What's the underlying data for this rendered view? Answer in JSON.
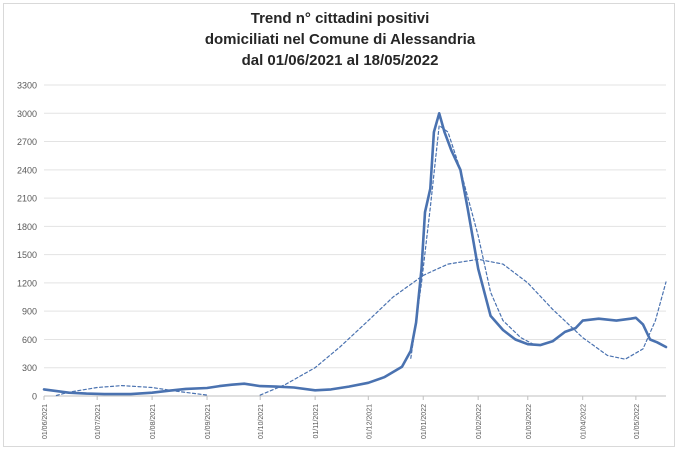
{
  "chart_data": {
    "type": "line",
    "title_lines": [
      "Trend n° cittadini positivi",
      "domiciliati nel Comune di Alessandria",
      "dal 01/06/2021 al 18/05/2022"
    ],
    "xlabel": "",
    "ylabel": "",
    "ylim": [
      0,
      3300
    ],
    "y_ticks": [
      "0",
      "300",
      "600",
      "900",
      "1200",
      "1500",
      "1800",
      "2100",
      "2400",
      "2700",
      "3000",
      "3300"
    ],
    "x_ticks": [
      "01/06/2021",
      "01/07/2021",
      "01/08/2021",
      "01/09/2021",
      "01/10/2021",
      "01/11/2021",
      "01/12/2021",
      "01/01/2022",
      "01/02/2022",
      "01/03/2022",
      "01/04/2022",
      "01/05/2022"
    ],
    "x_range": [
      "01/06/2021",
      "18/05/2022"
    ],
    "grid": true,
    "legend": "none",
    "series": [
      {
        "style": "solid",
        "color": "#4a72b0",
        "points": [
          [
            "01/06/2021",
            70
          ],
          [
            "07/06/2021",
            55
          ],
          [
            "15/06/2021",
            35
          ],
          [
            "25/06/2021",
            25
          ],
          [
            "05/07/2021",
            20
          ],
          [
            "20/07/2021",
            20
          ],
          [
            "01/08/2021",
            35
          ],
          [
            "10/08/2021",
            55
          ],
          [
            "20/08/2021",
            75
          ],
          [
            "01/09/2021",
            85
          ],
          [
            "08/09/2021",
            105
          ],
          [
            "15/09/2021",
            120
          ],
          [
            "22/09/2021",
            130
          ],
          [
            "01/10/2021",
            105
          ],
          [
            "10/10/2021",
            100
          ],
          [
            "20/10/2021",
            90
          ],
          [
            "01/11/2021",
            60
          ],
          [
            "10/11/2021",
            70
          ],
          [
            "20/11/2021",
            100
          ],
          [
            "01/12/2021",
            140
          ],
          [
            "10/12/2021",
            200
          ],
          [
            "20/12/2021",
            310
          ],
          [
            "25/12/2021",
            480
          ],
          [
            "28/12/2021",
            780
          ],
          [
            "31/12/2021",
            1350
          ],
          [
            "02/01/2022",
            1950
          ],
          [
            "05/01/2022",
            2200
          ],
          [
            "07/01/2022",
            2800
          ],
          [
            "10/01/2022",
            3000
          ],
          [
            "13/01/2022",
            2800
          ],
          [
            "17/01/2022",
            2600
          ],
          [
            "22/01/2022",
            2400
          ],
          [
            "26/01/2022",
            2000
          ],
          [
            "01/02/2022",
            1350
          ],
          [
            "08/02/2022",
            850
          ],
          [
            "15/02/2022",
            700
          ],
          [
            "22/02/2022",
            600
          ],
          [
            "01/03/2022",
            550
          ],
          [
            "08/03/2022",
            540
          ],
          [
            "15/03/2022",
            580
          ],
          [
            "22/03/2022",
            680
          ],
          [
            "28/03/2022",
            720
          ],
          [
            "01/04/2022",
            800
          ],
          [
            "10/04/2022",
            820
          ],
          [
            "20/04/2022",
            800
          ],
          [
            "28/04/2022",
            820
          ],
          [
            "01/05/2022",
            830
          ],
          [
            "05/05/2022",
            760
          ],
          [
            "09/05/2022",
            600
          ],
          [
            "13/05/2022",
            570
          ],
          [
            "18/05/2022",
            520
          ]
        ]
      },
      {
        "style": "dashed",
        "color": "#4a72b0",
        "points": [
          [
            "08/06/2021",
            5
          ],
          [
            "15/06/2021",
            40
          ],
          [
            "01/07/2021",
            90
          ],
          [
            "15/07/2021",
            110
          ],
          [
            "01/08/2021",
            90
          ],
          [
            "15/08/2021",
            50
          ],
          [
            "01/09/2021",
            10
          ]
        ]
      },
      {
        "style": "dashed",
        "color": "#4a72b0",
        "points": [
          [
            "01/10/2021",
            10
          ],
          [
            "15/10/2021",
            120
          ],
          [
            "01/11/2021",
            300
          ],
          [
            "15/11/2021",
            520
          ],
          [
            "01/12/2021",
            800
          ],
          [
            "15/12/2021",
            1050
          ],
          [
            "01/01/2022",
            1280
          ],
          [
            "15/01/2022",
            1400
          ],
          [
            "01/02/2022",
            1450
          ],
          [
            "15/02/2022",
            1400
          ],
          [
            "01/03/2022",
            1200
          ],
          [
            "15/03/2022",
            920
          ],
          [
            "01/04/2022",
            620
          ],
          [
            "15/04/2022",
            430
          ],
          [
            "25/04/2022",
            390
          ],
          [
            "05/05/2022",
            500
          ],
          [
            "12/05/2022",
            800
          ],
          [
            "18/05/2022",
            1210
          ]
        ]
      },
      {
        "style": "dashed",
        "color": "#4a72b0",
        "points": [
          [
            "25/12/2021",
            400
          ],
          [
            "31/12/2021",
            1200
          ],
          [
            "05/01/2022",
            2000
          ],
          [
            "10/01/2022",
            2870
          ],
          [
            "15/01/2022",
            2800
          ],
          [
            "22/01/2022",
            2400
          ],
          [
            "01/02/2022",
            1700
          ],
          [
            "08/02/2022",
            1100
          ],
          [
            "15/02/2022",
            800
          ],
          [
            "25/02/2022",
            620
          ],
          [
            "05/03/2022",
            540
          ]
        ]
      }
    ]
  }
}
